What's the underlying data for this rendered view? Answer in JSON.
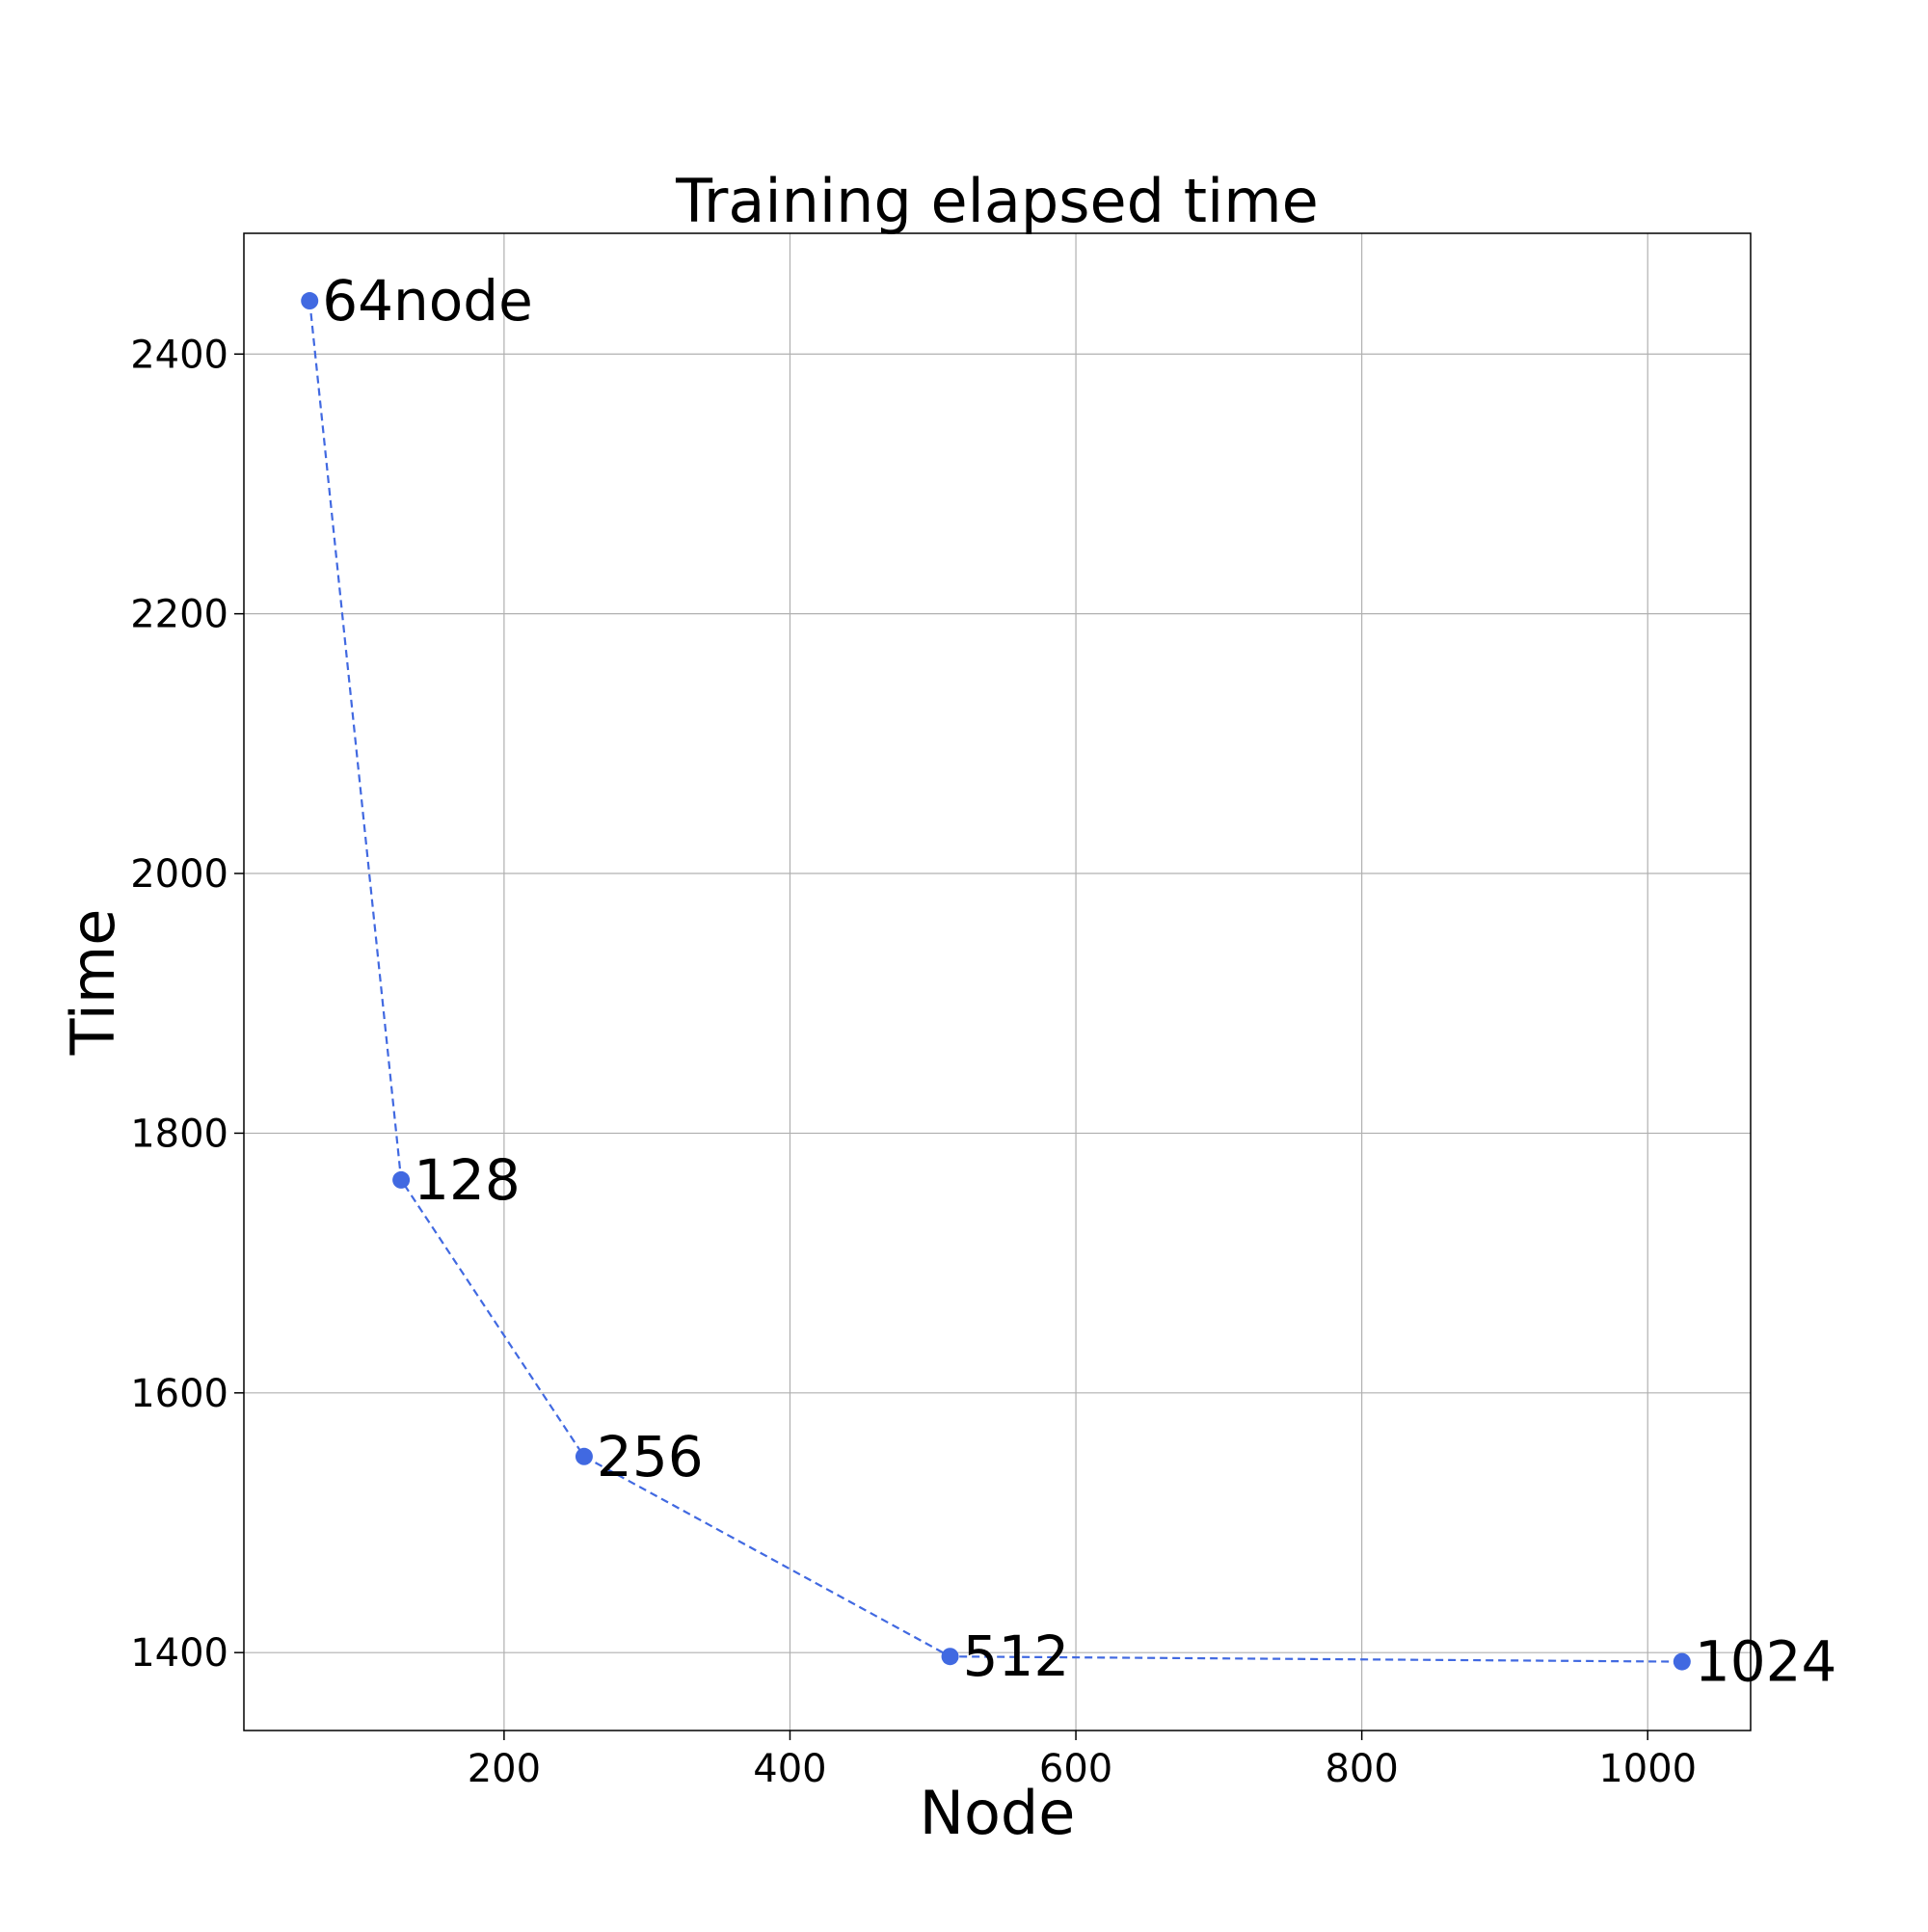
{
  "chart_data": {
    "type": "line",
    "title": "Training elapsed time",
    "xlabel": "Node",
    "ylabel": "Time",
    "xlim": [
      18,
      1072
    ],
    "ylim": [
      1340,
      2493
    ],
    "xticks": [
      200,
      400,
      600,
      800,
      1000
    ],
    "yticks": [
      1400,
      1600,
      1800,
      2000,
      2200,
      2400
    ],
    "grid": true,
    "line_style": "dashed",
    "marker": "circle",
    "series": [
      {
        "color": "#4169e1",
        "points": [
          {
            "x": 64,
            "y": 2441,
            "label": "64node"
          },
          {
            "x": 128,
            "y": 1764,
            "label": "128"
          },
          {
            "x": 256,
            "y": 1551,
            "label": "256"
          },
          {
            "x": 512,
            "y": 1397,
            "label": "512"
          },
          {
            "x": 1024,
            "y": 1393,
            "label": "1024"
          }
        ]
      }
    ]
  }
}
